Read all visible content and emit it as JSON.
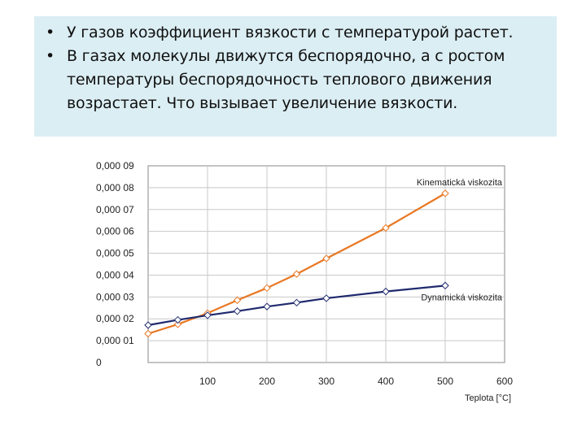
{
  "slide": {
    "bullets": [
      "У газов коэффициент вязкости с температурой растет.",
      "В газах молекулы движутся беспорядочно, а с ростом температуры беспорядочность теплового движения возрастает. Что вызывает увеличение вязкости."
    ],
    "bullet_symbol": "•"
  },
  "chart_data": {
    "type": "line",
    "xlabel": "Teplota [°C]",
    "ylabel": "",
    "xlim": [
      0,
      600
    ],
    "ylim": [
      0,
      9e-05
    ],
    "x_ticks": [
      "100",
      "200",
      "300",
      "400",
      "500",
      "600"
    ],
    "y_ticks": [
      "0",
      "0,000 01",
      "0,000 02",
      "0,000 03",
      "0,000 04",
      "0,000 05",
      "0,000 06",
      "0,000 07",
      "0,000 08",
      "0,000 09"
    ],
    "grid": true,
    "series": [
      {
        "name": "Kinematická viskozita",
        "color": "#e87722",
        "marker": "diamond",
        "x": [
          0,
          50,
          100,
          150,
          200,
          250,
          300,
          400,
          500
        ],
        "y": [
          1.32e-05,
          1.75e-05,
          2.26e-05,
          2.85e-05,
          3.41e-05,
          4.05e-05,
          4.76e-05,
          6.16e-05,
          7.74e-05
        ]
      },
      {
        "name": "Dynamická viskozita",
        "color": "#1f2a6e",
        "marker": "diamond",
        "x": [
          0,
          50,
          100,
          150,
          200,
          250,
          300,
          400,
          500
        ],
        "y": [
          1.71e-05,
          1.95e-05,
          2.16e-05,
          2.35e-05,
          2.56e-05,
          2.74e-05,
          2.94e-05,
          3.25e-05,
          3.52e-05
        ]
      }
    ]
  }
}
